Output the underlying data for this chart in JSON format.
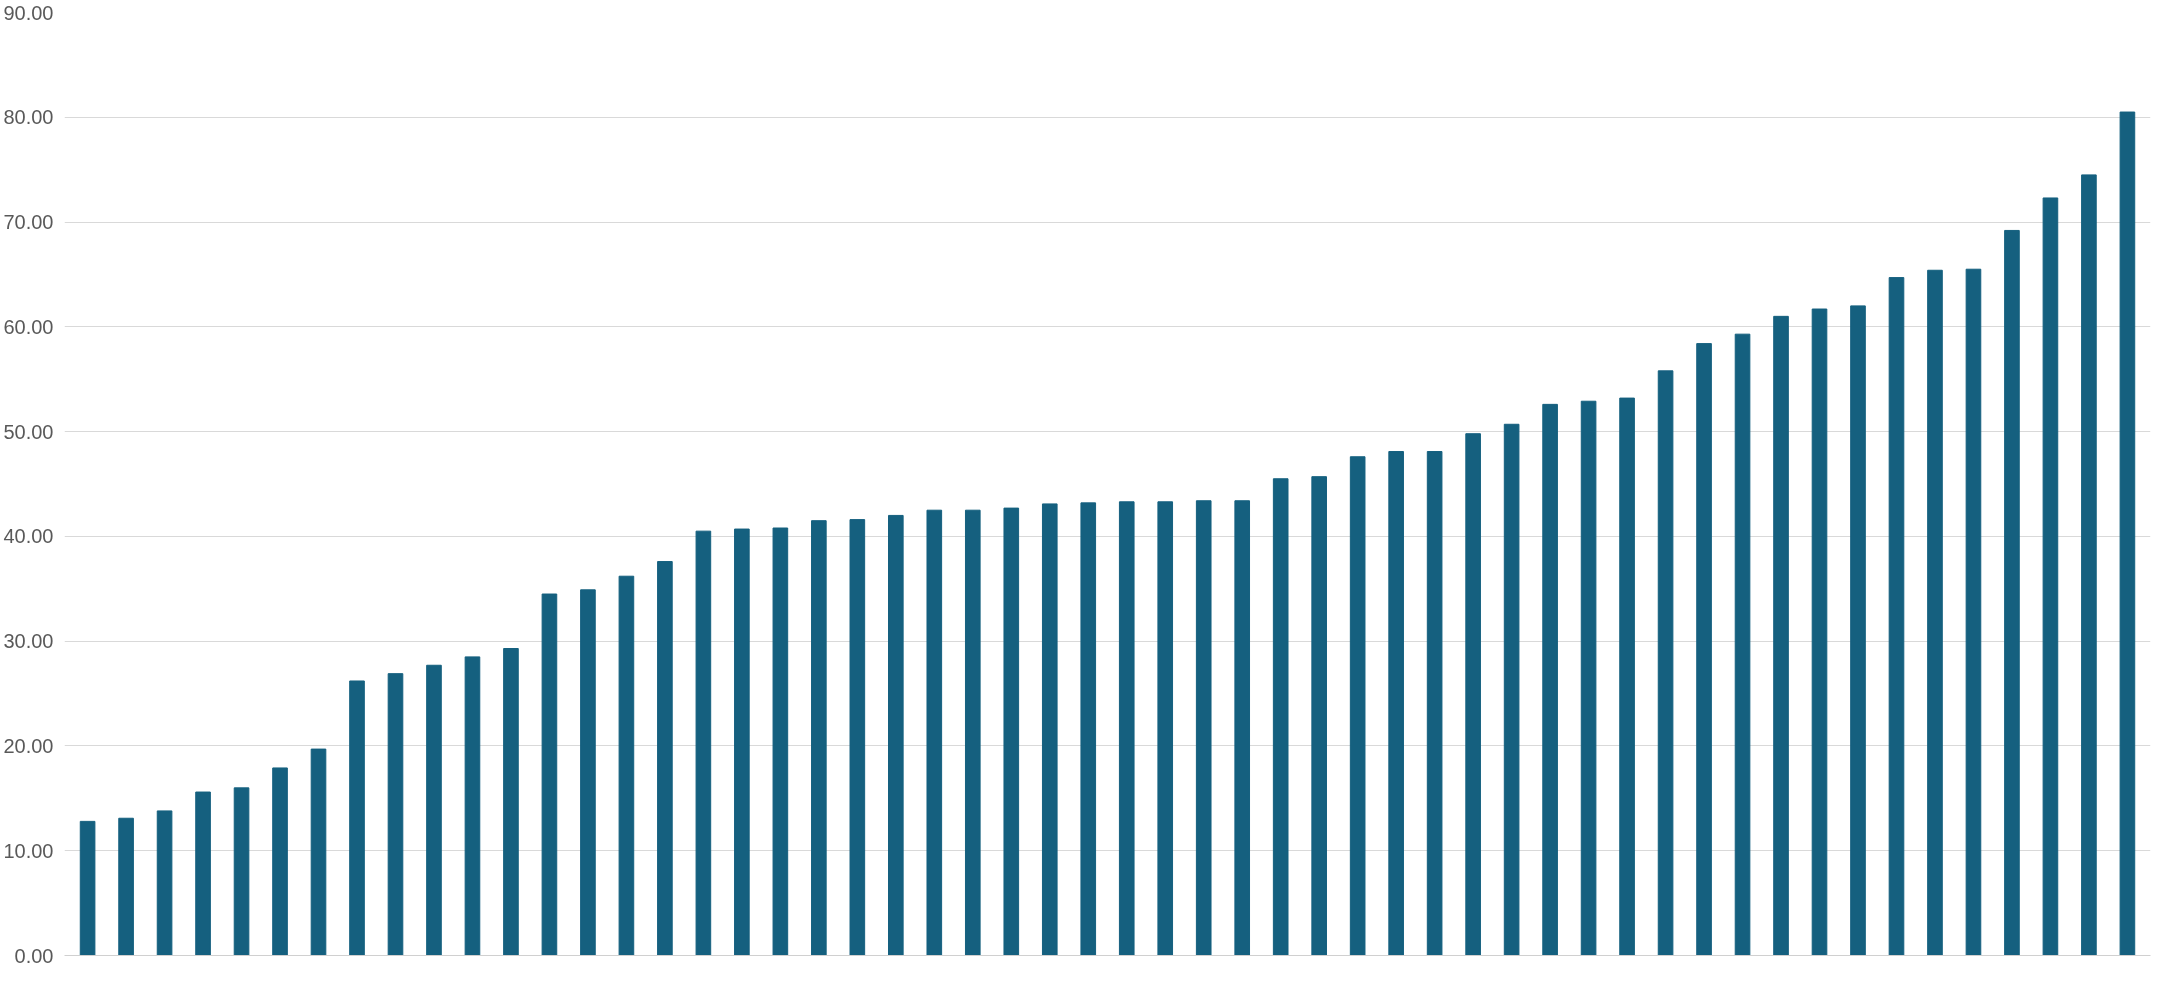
{
  "chart_data": {
    "type": "bar",
    "categories": [
      null,
      null,
      null,
      null,
      null,
      null,
      null,
      null,
      null,
      null,
      null,
      null,
      null,
      null,
      null,
      null,
      null,
      null,
      null,
      null,
      null,
      null,
      null,
      null,
      null,
      null,
      null,
      null,
      null,
      null,
      null,
      null,
      null,
      null,
      null,
      null,
      null,
      null,
      null,
      null,
      null,
      null,
      null,
      null,
      null,
      null,
      null,
      null,
      null,
      null,
      null,
      null,
      null,
      null
    ],
    "values": [
      12.8,
      13.1,
      13.8,
      15.6,
      16.0,
      17.9,
      19.7,
      26.2,
      26.9,
      27.7,
      28.5,
      29.3,
      34.5,
      34.9,
      36.2,
      37.6,
      40.5,
      40.7,
      40.8,
      41.5,
      41.6,
      42.0,
      42.5,
      42.5,
      42.7,
      43.1,
      43.2,
      43.3,
      43.3,
      43.4,
      43.4,
      45.5,
      45.7,
      47.6,
      48.1,
      48.1,
      49.8,
      50.7,
      52.6,
      52.9,
      53.2,
      55.8,
      58.4,
      59.3,
      61.0,
      61.7,
      62.0,
      64.7,
      65.4,
      65.5,
      69.2,
      72.3,
      74.5,
      80.5
    ],
    "color": "#15607f",
    "ylim": [
      0,
      90
    ],
    "yticks": [
      {
        "value": 0,
        "label": "0.00"
      },
      {
        "value": 10,
        "label": "10.00"
      },
      {
        "value": 20,
        "label": "20.00"
      },
      {
        "value": 30,
        "label": "30.00"
      },
      {
        "value": 40,
        "label": "40.00"
      },
      {
        "value": 50,
        "label": "50.00"
      },
      {
        "value": 60,
        "label": "60.00"
      },
      {
        "value": 70,
        "label": "70.00"
      },
      {
        "value": 80,
        "label": "80.00"
      },
      {
        "value": 90,
        "label": "90.00"
      }
    ],
    "grid": "y",
    "tick_labels": "y"
  }
}
